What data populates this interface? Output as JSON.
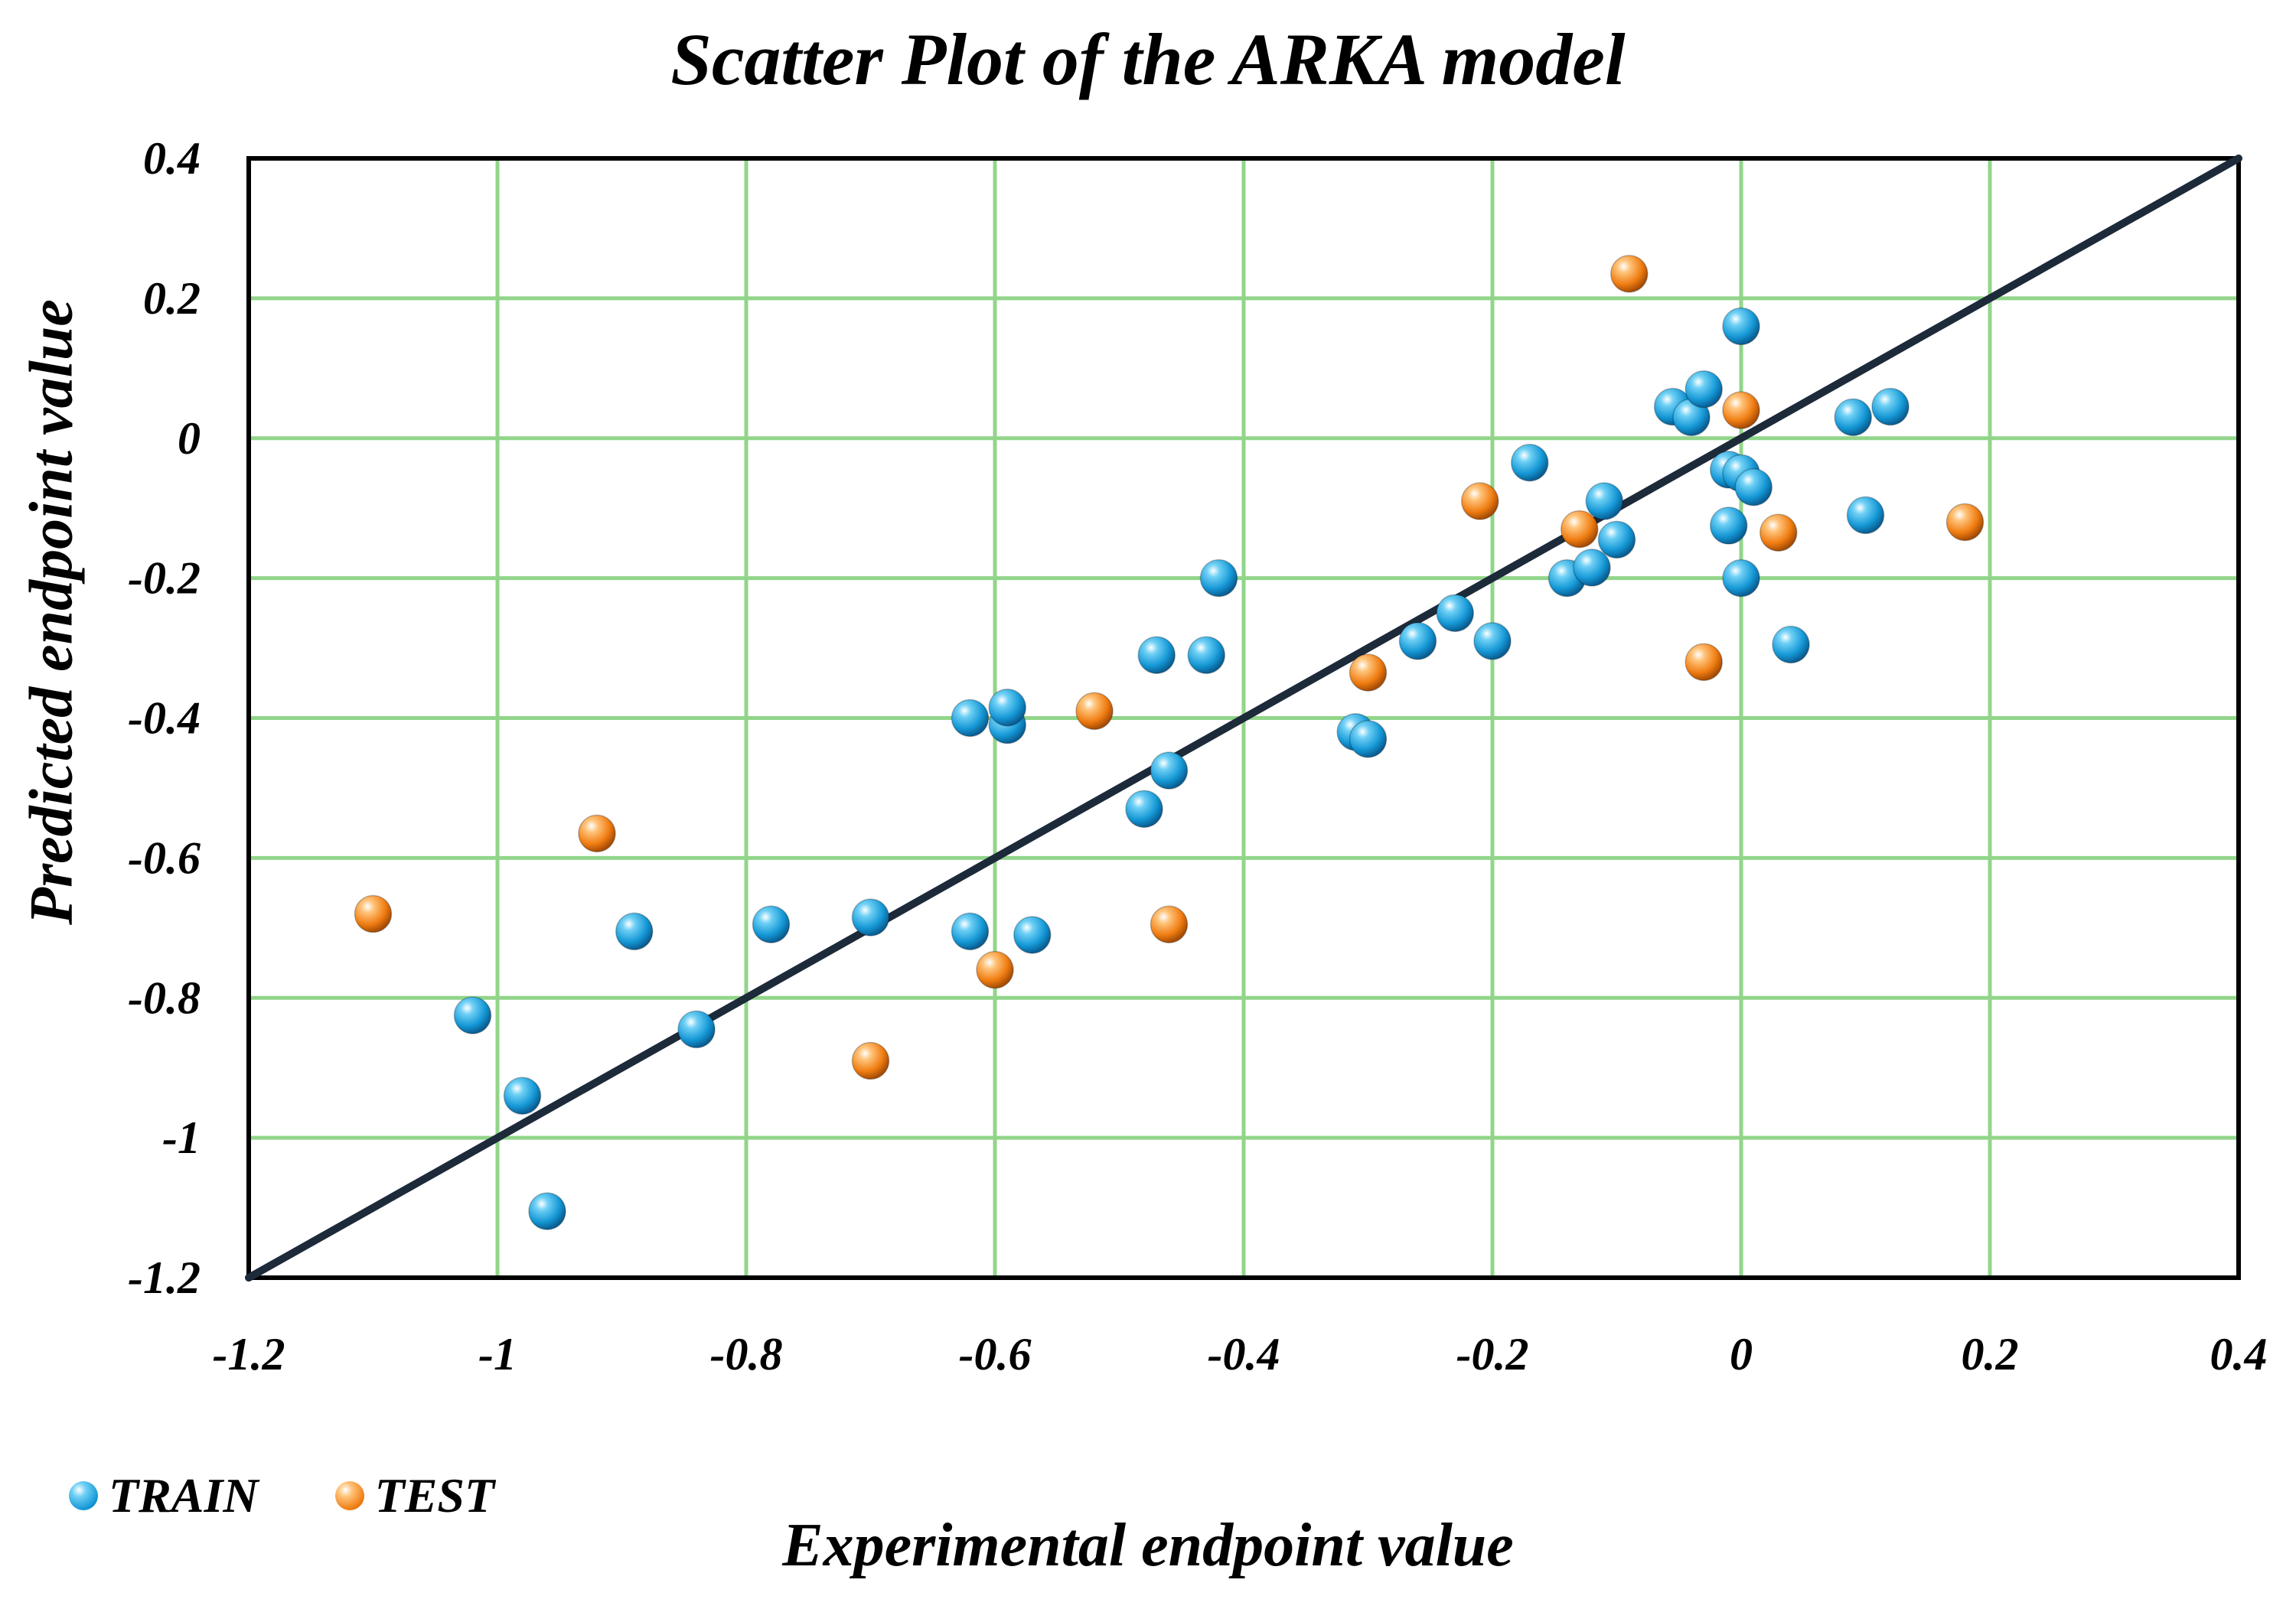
{
  "chart_data": {
    "type": "scatter",
    "title": "Scatter Plot of the ARKA model",
    "xlabel": "Experimental endpoint value",
    "ylabel": "Predicted endpoint value",
    "xlim": [
      -1.2,
      0.4
    ],
    "ylim": [
      -1.2,
      0.4
    ],
    "xticks": [
      -1.2,
      -1.0,
      -0.8,
      -0.6,
      -0.4,
      -0.2,
      0,
      0.2,
      0.4
    ],
    "yticks": [
      0.4,
      0.2,
      0,
      -0.2,
      -0.4,
      -0.6,
      -0.8,
      -1.0,
      -1.2
    ],
    "xtick_labels": [
      "-1.2",
      "-1",
      "-0.8",
      "-0.6",
      "-0.4",
      "-0.2",
      "0",
      "0.2",
      "0.4"
    ],
    "ytick_labels": [
      "0.4",
      "0.2",
      "0",
      "-0.2",
      "-0.4",
      "-0.6",
      "-0.8",
      "-1",
      "-1.2"
    ],
    "grid": true,
    "legend_position": "bottom-left",
    "reference_line": {
      "from": [
        -1.2,
        -1.2
      ],
      "to": [
        0.4,
        0.4
      ]
    },
    "series": [
      {
        "name": "TRAIN",
        "color": "#1B9BD8",
        "points": [
          [
            -1.02,
            -0.825
          ],
          [
            -0.98,
            -0.94
          ],
          [
            -0.96,
            -1.105
          ],
          [
            -0.89,
            -0.705
          ],
          [
            -0.84,
            -0.845
          ],
          [
            -0.78,
            -0.695
          ],
          [
            -0.7,
            -0.685
          ],
          [
            -0.62,
            -0.705
          ],
          [
            -0.57,
            -0.71
          ],
          [
            -0.62,
            -0.4
          ],
          [
            -0.59,
            -0.41
          ],
          [
            -0.59,
            -0.385
          ],
          [
            -0.48,
            -0.53
          ],
          [
            -0.46,
            -0.475
          ],
          [
            -0.47,
            -0.31
          ],
          [
            -0.43,
            -0.31
          ],
          [
            -0.42,
            -0.2
          ],
          [
            -0.31,
            -0.42
          ],
          [
            -0.3,
            -0.43
          ],
          [
            -0.26,
            -0.29
          ],
          [
            -0.23,
            -0.25
          ],
          [
            -0.2,
            -0.29
          ],
          [
            -0.17,
            -0.035
          ],
          [
            -0.14,
            -0.2
          ],
          [
            -0.12,
            -0.185
          ],
          [
            -0.11,
            -0.09
          ],
          [
            -0.1,
            -0.145
          ],
          [
            -0.055,
            0.045
          ],
          [
            -0.04,
            0.03
          ],
          [
            -0.03,
            0.07
          ],
          [
            -0.01,
            -0.045
          ],
          [
            0.0,
            -0.05
          ],
          [
            0.01,
            -0.07
          ],
          [
            -0.01,
            -0.125
          ],
          [
            0.0,
            -0.2
          ],
          [
            0.0,
            0.16
          ],
          [
            0.04,
            -0.295
          ],
          [
            0.09,
            0.03
          ],
          [
            0.12,
            0.045
          ],
          [
            0.1,
            -0.11
          ]
        ]
      },
      {
        "name": "TEST",
        "color": "#F07D12",
        "points": [
          [
            -1.1,
            -0.68
          ],
          [
            -0.92,
            -0.565
          ],
          [
            -0.7,
            -0.89
          ],
          [
            -0.6,
            -0.76
          ],
          [
            -0.52,
            -0.39
          ],
          [
            -0.46,
            -0.695
          ],
          [
            -0.3,
            -0.335
          ],
          [
            -0.21,
            -0.09
          ],
          [
            -0.13,
            -0.13
          ],
          [
            -0.09,
            0.235
          ],
          [
            -0.03,
            -0.32
          ],
          [
            0.0,
            0.04
          ],
          [
            0.03,
            -0.135
          ],
          [
            0.18,
            -0.12
          ]
        ]
      }
    ]
  }
}
